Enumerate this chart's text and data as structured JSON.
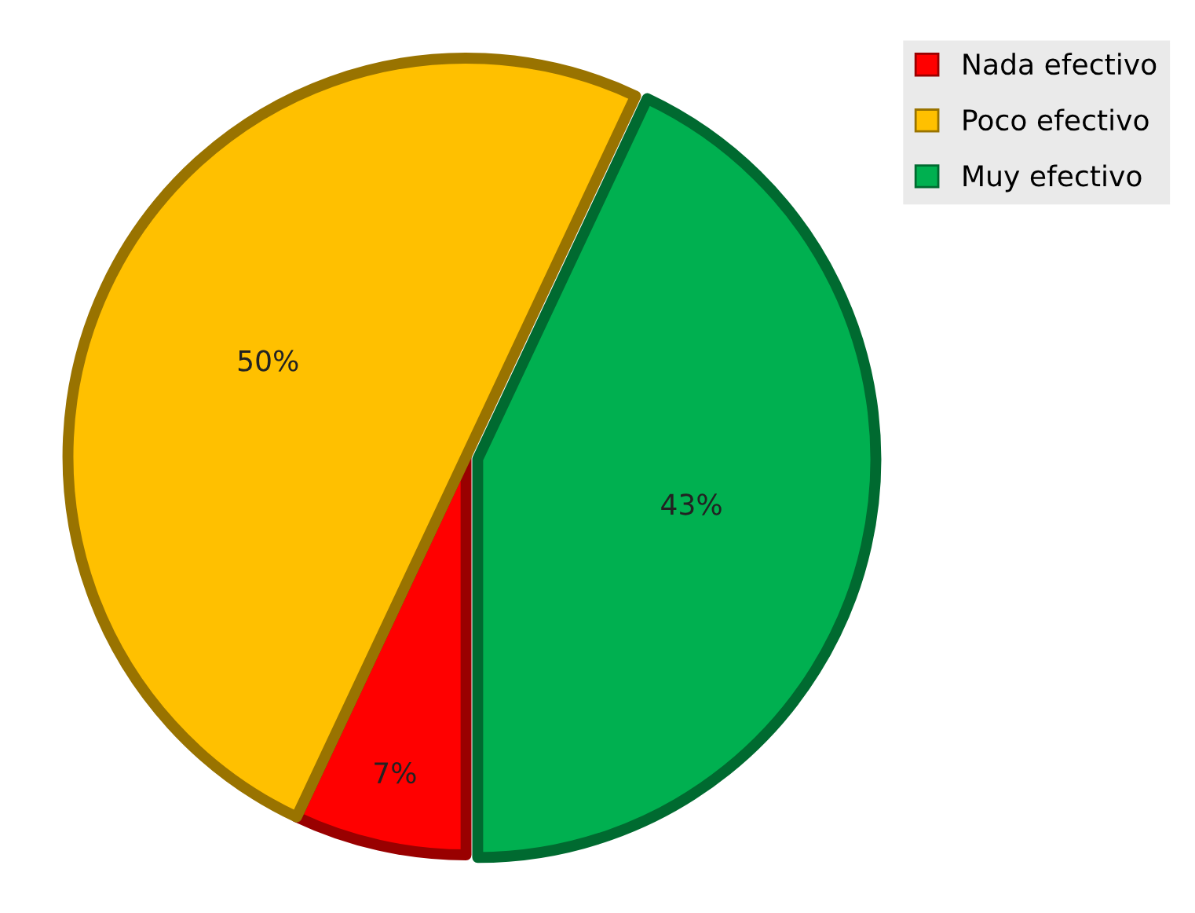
{
  "chart_data": {
    "type": "pie",
    "categories": [
      "Nada efectivo",
      "Poco efectivo",
      "Muy efectivo"
    ],
    "values": [
      7,
      50,
      43
    ],
    "colors": [
      "#ff0000",
      "#ffc000",
      "#00b050"
    ],
    "value_labels": [
      "7%",
      "50%",
      "43%"
    ],
    "legend": "top right"
  }
}
